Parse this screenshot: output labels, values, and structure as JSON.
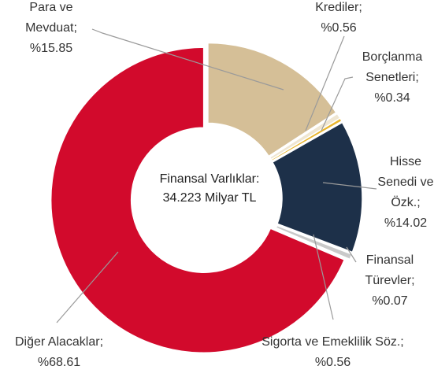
{
  "chart_data": {
    "type": "pie",
    "center_label": [
      "Finansal Varlıklar:",
      "34.223 Milyar TL"
    ],
    "categories": [
      "Para ve Mevduat;",
      "Krediler;",
      "Borçlanma Senetleri;",
      "Hisse Senedi ve Özk.;",
      "Finansal Türevler;",
      "Sigorta ve Emeklilik Söz.;",
      "Diğer Alacaklar;"
    ],
    "values": [
      15.85,
      0.56,
      0.34,
      14.02,
      0.07,
      0.56,
      68.61
    ],
    "value_labels": [
      "%15.85",
      "%0.56",
      "%0.34",
      "%14.02",
      "%0.07",
      "%0.56",
      "%68.61"
    ],
    "colors": [
      "#d5bf97",
      "#efe6d2",
      "#e8b52e",
      "#1d3049",
      "#4f7db3",
      "#c9c9c9",
      "#d20a2c"
    ]
  }
}
